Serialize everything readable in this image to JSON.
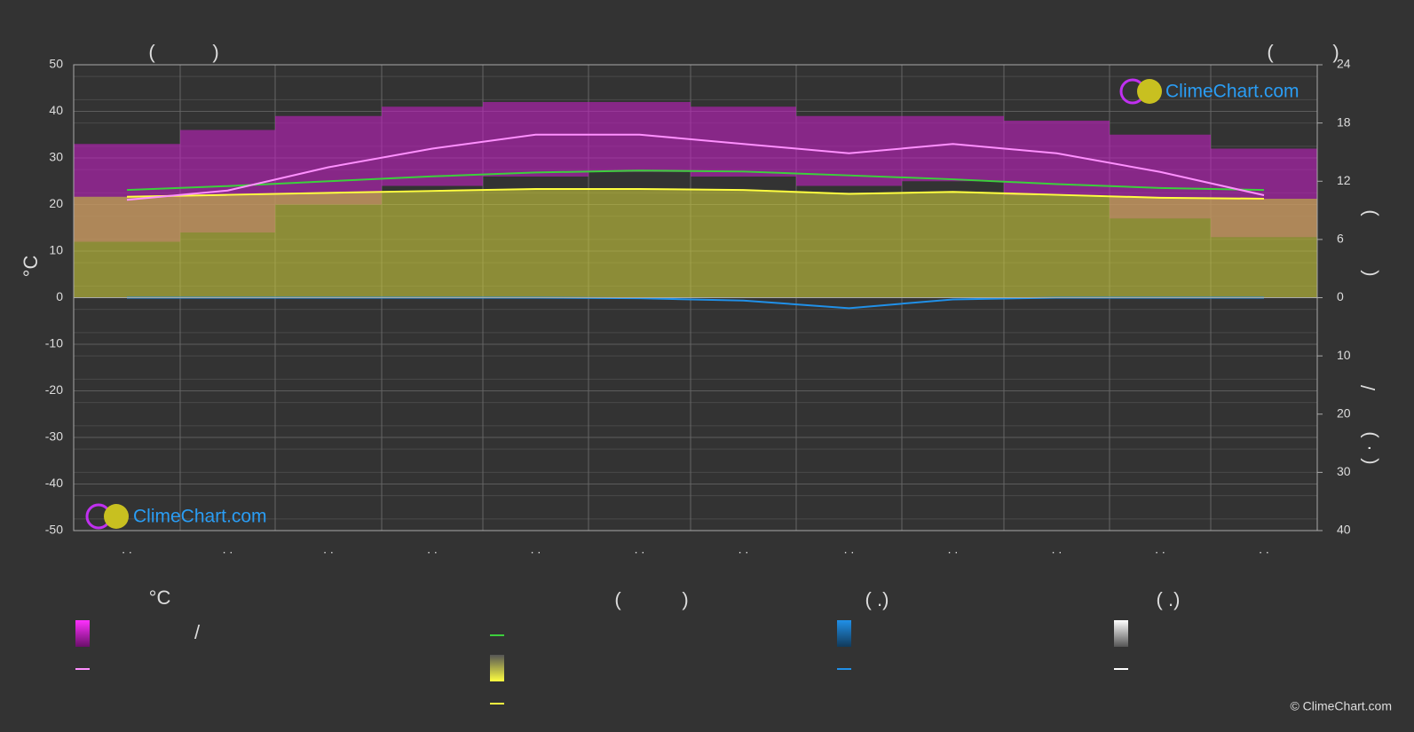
{
  "chart_data": {
    "type": "line",
    "title_left": [
      "(",
      ")"
    ],
    "title_right": [
      "(",
      ")"
    ],
    "y_label": "°C",
    "y2_label_fragments": [
      ")",
      "(",
      "/",
      ")",
      "·",
      "("
    ],
    "categories": [
      ". .",
      ". .",
      ". .",
      ". .",
      ". .",
      ". .",
      ". .",
      ". .",
      ". .",
      ". .",
      ". .",
      ". ."
    ],
    "ylim": [
      -50,
      50
    ],
    "yticks": [
      50,
      40,
      30,
      20,
      10,
      0,
      -10,
      -20,
      -30,
      -40,
      -50
    ],
    "y2lim": [
      0,
      24
    ],
    "y2ticks": [
      0,
      6,
      12,
      18,
      24
    ],
    "y3lim": [
      0,
      40
    ],
    "y3ticks": [
      10,
      20,
      30,
      40
    ],
    "grid": true,
    "series": [
      {
        "kind": "range",
        "color": "#c020c0",
        "values": [
          33,
          36,
          39,
          41,
          42,
          42,
          41,
          39,
          39,
          38,
          35,
          32
        ],
        "lows": [
          12,
          14,
          20,
          24,
          26,
          27,
          26,
          24,
          25,
          22,
          17,
          13
        ]
      },
      {
        "kind": "area",
        "axis": "y2",
        "color": "#c8c83a",
        "values": [
          10.4,
          10.6,
          10.8,
          11.0,
          11.2,
          11.2,
          11.1,
          10.7,
          10.9,
          10.6,
          10.3,
          10.2
        ]
      },
      {
        "kind": "line",
        "axis": "y2",
        "color": "#3cd03c",
        "values": [
          11.1,
          11.5,
          12.0,
          12.5,
          12.9,
          13.1,
          13.0,
          12.6,
          12.2,
          11.7,
          11.3,
          11.1
        ]
      },
      {
        "kind": "line",
        "color": "#ff90ff",
        "values": [
          21,
          23,
          28,
          32,
          35,
          35,
          33,
          31,
          33,
          31,
          27,
          22
        ]
      },
      {
        "kind": "line",
        "axis": "y3",
        "color": "#2090e8",
        "values": [
          0,
          0,
          0,
          0,
          0,
          0.1,
          0.5,
          1.8,
          0.3,
          0,
          0,
          0
        ]
      }
    ],
    "legend_labels": [
      "°C",
      "(",
      ")",
      "( .)",
      "( .)",
      "/"
    ],
    "logo_text": "ClimeChart.com",
    "copyright": "© ClimeChart.com"
  }
}
